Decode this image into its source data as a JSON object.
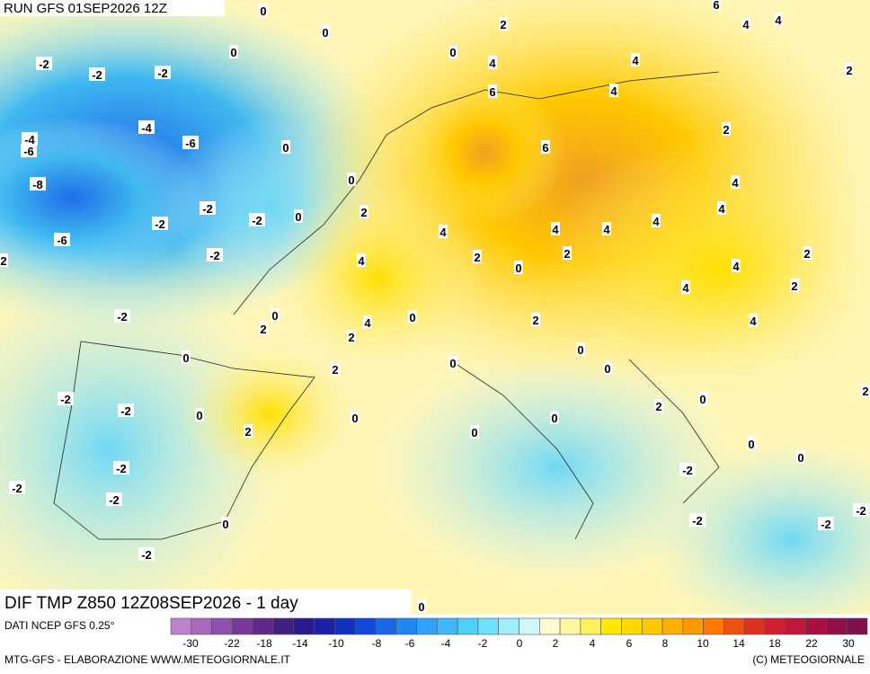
{
  "header": {
    "run": "RUN GFS 01SEP2026 12Z"
  },
  "map": {
    "title": "DIF TMP Z850 12Z08SEP2026 - 1 day",
    "labels": [
      0,
      0,
      2,
      6,
      4,
      4,
      -2,
      -2,
      -2,
      0,
      0,
      4,
      4,
      2,
      6,
      4,
      -4,
      -4,
      -6,
      -6,
      0,
      6,
      2,
      -8,
      0,
      4,
      -2,
      -2,
      -2,
      0,
      2,
      4,
      4,
      4,
      4,
      4,
      -6,
      2,
      -2,
      4,
      2,
      0,
      2,
      2,
      4,
      4,
      2,
      -2,
      0,
      2,
      4,
      2,
      0,
      2,
      4,
      0,
      0,
      0,
      2,
      0,
      2,
      -2,
      -2,
      0,
      0,
      0,
      2,
      0,
      0,
      2,
      0,
      0,
      -2,
      -2,
      -2,
      -2,
      0,
      -2,
      -2,
      -2,
      -2,
      0
    ]
  },
  "footer": {
    "source": "DATI NCEP GFS 0.25°",
    "credit": "MTG-GFS - ELABORAZIONE WWW.METEOGIORNALE.IT",
    "copyright": "(C) METEOGIORNALE"
  },
  "colorbar": {
    "colors": [
      "#c080d0",
      "#a868c0",
      "#9050b0",
      "#783898",
      "#602888",
      "#402080",
      "#2a1a90",
      "#1a20a8",
      "#1030c0",
      "#1048d8",
      "#1868e8",
      "#2088f0",
      "#30a0f8",
      "#40b8f8",
      "#50d0f8",
      "#70e0f8",
      "#a0ecf8",
      "#d0f6fa",
      "#fffad0",
      "#fff8a0",
      "#fff060",
      "#ffe800",
      "#ffd800",
      "#ffc800",
      "#ffb000",
      "#ff9800",
      "#ff7800",
      "#f05010",
      "#e03020",
      "#d02030",
      "#c01838",
      "#a81040",
      "#901048",
      "#801050"
    ],
    "ticks": [
      -30,
      -22,
      -18,
      -14,
      -10,
      -8,
      -6,
      -4,
      -2,
      0,
      2,
      4,
      6,
      8,
      10,
      14,
      18,
      22,
      30
    ]
  }
}
